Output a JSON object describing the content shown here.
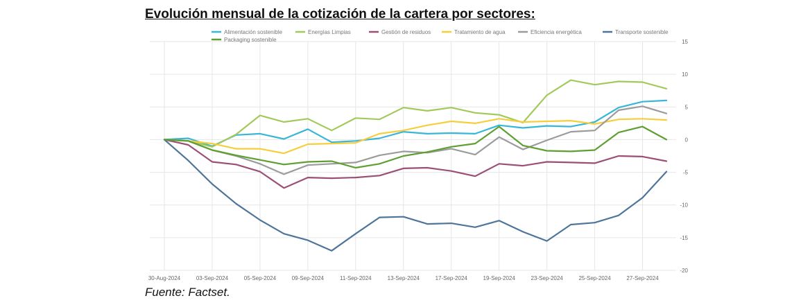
{
  "title": "Evolución mensual de la cotización de la cartera por sectores:",
  "source": "Fuente: Factset.",
  "chart_data": {
    "type": "line",
    "ylim": [
      -20,
      15
    ],
    "yticks": [
      15,
      10,
      5,
      0,
      -5,
      -10,
      -15,
      -20
    ],
    "grid": true,
    "legend_position": "top",
    "x_tick_labels": [
      "30-Aug-2024",
      "03-Sep-2024",
      "05-Sep-2024",
      "09-Sep-2024",
      "11-Sep-2024",
      "13-Sep-2024",
      "17-Sep-2024",
      "19-Sep-2024",
      "23-Sep-2024",
      "25-Sep-2024",
      "27-Sep-2024"
    ],
    "x": [
      "30-Aug-2024",
      "02-Sep-2024",
      "03-Sep-2024",
      "04-Sep-2024",
      "05-Sep-2024",
      "06-Sep-2024",
      "09-Sep-2024",
      "10-Sep-2024",
      "11-Sep-2024",
      "12-Sep-2024",
      "13-Sep-2024",
      "16-Sep-2024",
      "17-Sep-2024",
      "18-Sep-2024",
      "19-Sep-2024",
      "20-Sep-2024",
      "23-Sep-2024",
      "24-Sep-2024",
      "25-Sep-2024",
      "26-Sep-2024",
      "27-Sep-2024",
      "30-Sep-2024"
    ],
    "series": [
      {
        "name": "Alimentación sostenible",
        "color": "#38b6d8",
        "values": [
          0,
          0.2,
          -1,
          0.7,
          0.9,
          0.1,
          1.6,
          -0.4,
          -0.2,
          0.2,
          1.2,
          0.9,
          1.0,
          0.9,
          2.2,
          1.8,
          2.1,
          2.0,
          2.7,
          4.9,
          5.8,
          6.0
        ]
      },
      {
        "name": "Energías Limpias",
        "color": "#a2c95a",
        "values": [
          0,
          -0.2,
          -1.1,
          0.8,
          3.7,
          2.7,
          3.2,
          1.4,
          3.3,
          3.1,
          4.9,
          4.4,
          4.9,
          4.1,
          3.8,
          2.6,
          6.8,
          9.1,
          8.4,
          8.9,
          8.8,
          7.8
        ]
      },
      {
        "name": "Gestión de residuos",
        "color": "#9b4f75",
        "values": [
          0,
          -0.8,
          -3.4,
          -3.8,
          -4.9,
          -7.4,
          -5.8,
          -5.9,
          -5.8,
          -5.5,
          -4.4,
          -4.3,
          -4.8,
          -5.6,
          -3.7,
          -4.0,
          -3.4,
          -3.5,
          -3.6,
          -2.5,
          -2.6,
          -3.3
        ]
      },
      {
        "name": "Tratamiento de agua",
        "color": "#f6ce3c",
        "values": [
          0,
          -0.2,
          -0.6,
          -1.4,
          -1.4,
          -2.1,
          -0.7,
          -0.6,
          -0.5,
          0.9,
          1.4,
          2.2,
          2.8,
          2.5,
          3.2,
          2.7,
          2.8,
          2.9,
          2.4,
          3.1,
          3.2,
          3.0
        ]
      },
      {
        "name": "Eficiencia energética",
        "color": "#9b9b9b",
        "values": [
          0,
          -0.2,
          -1.6,
          -2.5,
          -3.7,
          -5.3,
          -3.9,
          -3.7,
          -3.5,
          -2.4,
          -1.8,
          -2.0,
          -1.4,
          -2.3,
          0.4,
          -1.5,
          -0.1,
          1.2,
          1.4,
          4.5,
          5.1,
          4.0
        ]
      },
      {
        "name": "Transporte sostenible",
        "color": "#4e7499",
        "values": [
          0,
          -3.2,
          -6.8,
          -9.8,
          -12.3,
          -14.4,
          -15.4,
          -17.0,
          -14.4,
          -11.9,
          -11.8,
          -12.9,
          -12.8,
          -13.4,
          -12.4,
          -14.1,
          -15.5,
          -13.0,
          -12.7,
          -11.6,
          -8.9,
          -4.9
        ]
      },
      {
        "name": "Packaging sostenible",
        "color": "#5f9e30",
        "values": [
          0,
          -0.2,
          -1.6,
          -2.4,
          -3.1,
          -3.8,
          -3.4,
          -3.3,
          -4.3,
          -3.7,
          -2.5,
          -1.9,
          -1.1,
          -0.6,
          2.0,
          -0.9,
          -1.7,
          -1.8,
          -1.6,
          1.1,
          2.0,
          0.0
        ]
      }
    ]
  }
}
